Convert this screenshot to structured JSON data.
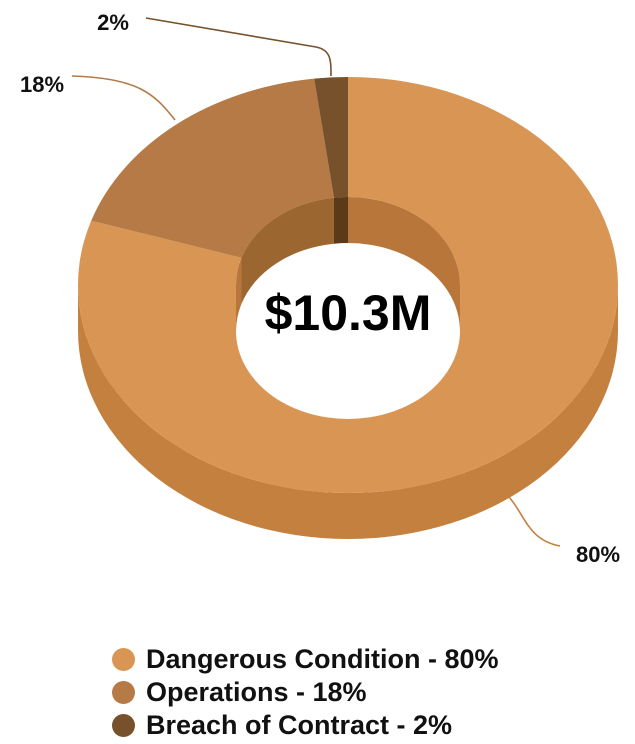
{
  "chart_data": {
    "type": "pie",
    "variant": "3d-donut",
    "center_label": "$10.3M",
    "categories": [
      "Dangerous Condition",
      "Operations",
      "Breach of Contract"
    ],
    "values": [
      80,
      18,
      2
    ],
    "data_labels": [
      "80%",
      "18%",
      "2%"
    ],
    "legend": {
      "placement": "bottom",
      "entries": [
        "Dangerous Condition - 80%",
        "Operations - 18%",
        "Breach of Contract - 2%"
      ]
    },
    "colors": {
      "top": [
        "#D99554",
        "#B57A45",
        "#76512C"
      ],
      "side": [
        "#C4803E",
        "#A16C3A",
        "#5E3F20"
      ],
      "inner": [
        "#B8763A",
        "#9C6630",
        "#5C3A18"
      ],
      "legend": [
        "#D99554",
        "#B57A45",
        "#76512C"
      ],
      "leader_lines": [
        "#C4803E",
        "#B57A45",
        "#76512C"
      ]
    }
  }
}
